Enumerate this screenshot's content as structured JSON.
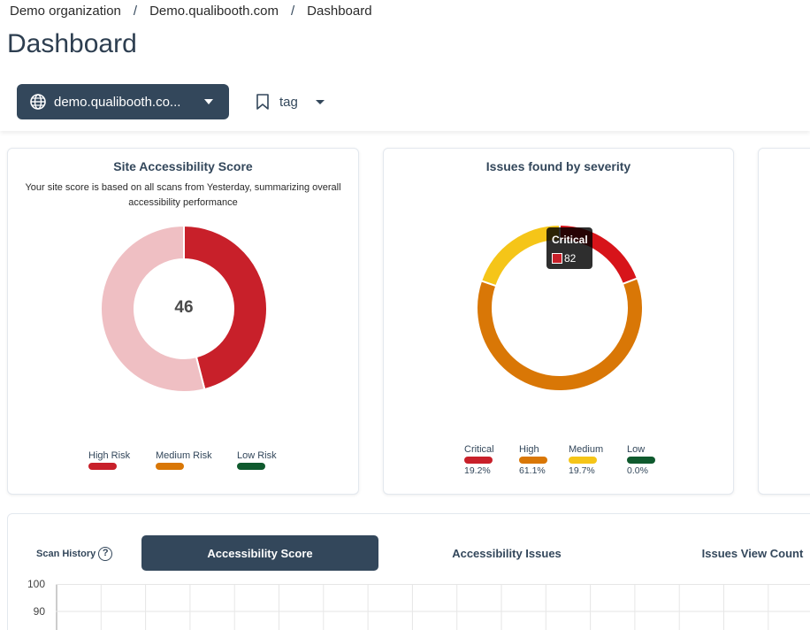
{
  "breadcrumb": [
    "Demo organization",
    "Demo.qualibooth.com",
    "Dashboard"
  ],
  "page_title": "Dashboard",
  "filters": {
    "site_value": "demo.qualibooth.co...",
    "tag_value": "tag"
  },
  "score_card": {
    "title": "Site Accessibility Score",
    "subtitle": "Your site score is based on all scans from Yesterday, summarizing overall accessibility performance",
    "score": "46",
    "legend": [
      {
        "label": "High Risk",
        "color": "#c8202a"
      },
      {
        "label": "Medium Risk",
        "color": "#d97706"
      },
      {
        "label": "Low Risk",
        "color": "#0f5a2e"
      }
    ],
    "chart_data": {
      "type": "pie",
      "values": [
        46,
        54
      ],
      "colors": [
        "#c8202a",
        "#efbfc3"
      ]
    }
  },
  "severity_card": {
    "title": "Issues found by severity",
    "legend": [
      {
        "label": "Critical",
        "pct": "19.2%",
        "color": "#c8202a"
      },
      {
        "label": "High",
        "pct": "61.1%",
        "color": "#d97706"
      },
      {
        "label": "Medium",
        "pct": "19.7%",
        "color": "#f5c518"
      },
      {
        "label": "Low",
        "pct": "0.0%",
        "color": "#0f5a2e"
      }
    ],
    "tooltip": {
      "title": "Critical",
      "value": "82"
    },
    "chart_data": {
      "type": "pie",
      "categories": [
        "Critical",
        "High",
        "Medium",
        "Low"
      ],
      "values": [
        19.2,
        61.1,
        19.7,
        0.0
      ],
      "colors": [
        "#d7141a",
        "#d97706",
        "#f5c518",
        "#0f5a2e"
      ]
    }
  },
  "history": {
    "label": "Scan History",
    "help_glyph": "?",
    "tabs": [
      "Accessibility Score",
      "Accessibility Issues",
      "Issues View Count"
    ],
    "y_ticks": [
      "100",
      "90"
    ]
  },
  "colors": {
    "navy": "#33475b"
  }
}
